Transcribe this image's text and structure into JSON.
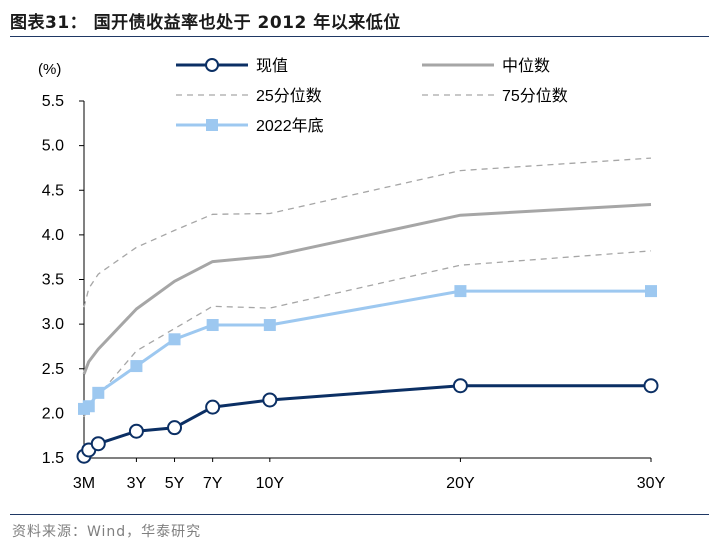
{
  "figure": {
    "title": "图表31：  国开债收益率也处于 2012 年以来低位",
    "source": "资料来源：Wind，华泰研究"
  },
  "chart_data": {
    "type": "line",
    "ylabel": "(%)",
    "ylim": [
      1.5,
      5.5
    ],
    "yticks": [
      "1.5",
      "2.0",
      "2.5",
      "3.0",
      "3.5",
      "4.0",
      "4.5",
      "5.0",
      "5.5"
    ],
    "x_tenors_years": [
      0.25,
      0.5,
      1,
      3,
      5,
      7,
      10,
      20,
      30
    ],
    "xticks": [
      {
        "label": "3M",
        "x": 0.25
      },
      {
        "label": "3Y",
        "x": 3
      },
      {
        "label": "5Y",
        "x": 5
      },
      {
        "label": "7Y",
        "x": 7
      },
      {
        "label": "10Y",
        "x": 10
      },
      {
        "label": "20Y",
        "x": 20
      },
      {
        "label": "30Y",
        "x": 30
      }
    ],
    "legend_placement": "top",
    "series": [
      {
        "name": "现值",
        "color": "#0b2f64",
        "style": "solid-circle",
        "values": [
          1.52,
          1.59,
          1.66,
          1.8,
          1.84,
          2.07,
          2.15,
          2.31,
          2.31
        ]
      },
      {
        "name": "中位数",
        "color": "#a6a6a6",
        "style": "solid",
        "values": [
          2.44,
          2.58,
          2.72,
          3.17,
          3.48,
          3.7,
          3.76,
          4.22,
          4.34
        ]
      },
      {
        "name": "25分位数",
        "color": "#a6a6a6",
        "style": "dashed",
        "values": [
          1.96,
          2.07,
          2.2,
          2.7,
          2.95,
          3.2,
          3.18,
          3.66,
          3.82
        ]
      },
      {
        "name": "75分位数",
        "color": "#a6a6a6",
        "style": "dashed",
        "values": [
          3.19,
          3.4,
          3.56,
          3.86,
          4.05,
          4.23,
          4.24,
          4.72,
          4.86
        ]
      },
      {
        "name": "2022年底",
        "color": "#9dc8f0",
        "style": "solid-square",
        "values": [
          2.05,
          2.08,
          2.23,
          2.53,
          2.83,
          2.99,
          2.99,
          3.37,
          3.37
        ]
      }
    ]
  }
}
